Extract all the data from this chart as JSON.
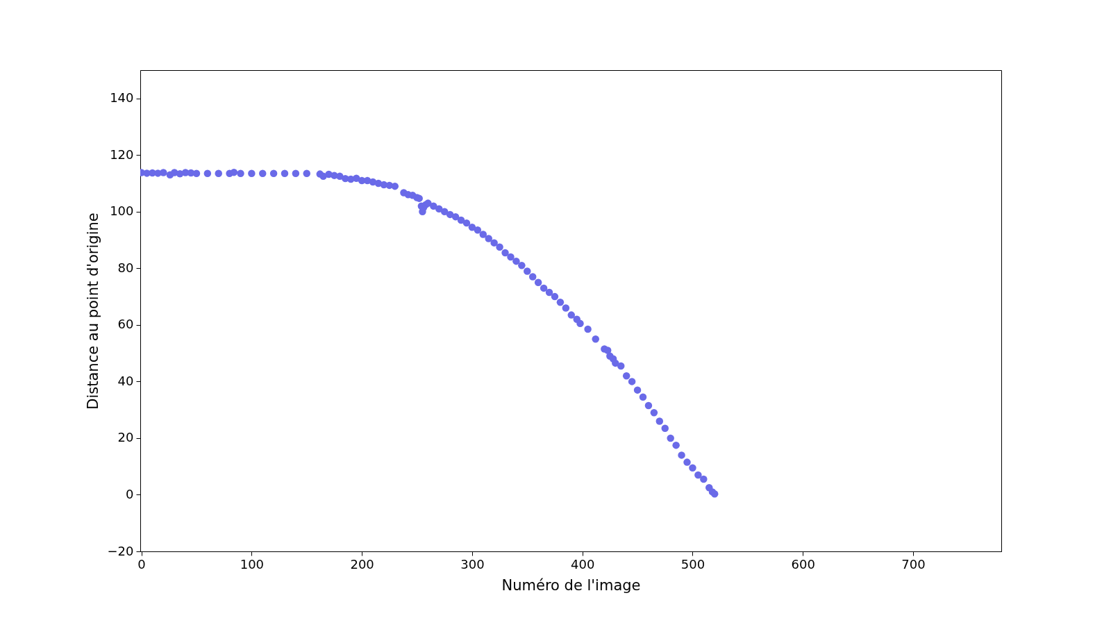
{
  "chart_data": {
    "type": "scatter",
    "xlabel": "Numéro de l'image",
    "ylabel": "Distance au point d'origine",
    "xlim": [
      -1,
      780
    ],
    "ylim": [
      -20,
      150
    ],
    "xticks": [
      0,
      100,
      200,
      300,
      400,
      500,
      600,
      700
    ],
    "yticks": [
      -20,
      0,
      20,
      40,
      60,
      80,
      100,
      120,
      140
    ],
    "grid": false,
    "marker": "circle",
    "series": [
      {
        "color": "#6a6ae8",
        "x": [
          0,
          5,
          10,
          15,
          20,
          26,
          30,
          35,
          40,
          45,
          50,
          60,
          70,
          80,
          84,
          90,
          100,
          110,
          120,
          130,
          140,
          150,
          162,
          165,
          170,
          175,
          180,
          185,
          190,
          195,
          200,
          205,
          210,
          215,
          220,
          225,
          230,
          238,
          242,
          246,
          250,
          252,
          254,
          255,
          256,
          258,
          260,
          265,
          270,
          275,
          280,
          285,
          290,
          295,
          300,
          305,
          310,
          315,
          320,
          325,
          330,
          335,
          340,
          345,
          350,
          355,
          360,
          365,
          370,
          375,
          380,
          385,
          390,
          395,
          398,
          405,
          412,
          420,
          423,
          425,
          428,
          430,
          435,
          440,
          445,
          450,
          455,
          460,
          465,
          470,
          475,
          480,
          485,
          490,
          495,
          500,
          505,
          510,
          515,
          518,
          520
        ],
        "values": [
          113.8,
          113.6,
          113.7,
          113.6,
          113.8,
          113,
          113.8,
          113.4,
          113.8,
          113.7,
          113.5,
          113.5,
          113.5,
          113.5,
          113.9,
          113.5,
          113.5,
          113.5,
          113.5,
          113.5,
          113.5,
          113.5,
          113.3,
          112.5,
          113.2,
          112.8,
          112.5,
          111.7,
          111.5,
          111.8,
          111,
          111,
          110.5,
          110,
          109.5,
          109.3,
          109,
          106.7,
          106,
          105.8,
          105,
          104.7,
          102,
          100,
          101.5,
          102.5,
          103,
          102,
          101,
          100,
          99,
          98.2,
          97,
          96,
          94.5,
          93.5,
          92,
          90.5,
          89,
          87.5,
          85.5,
          84,
          82.5,
          81,
          79,
          77,
          75,
          73,
          71.5,
          70,
          68,
          66,
          63.5,
          62,
          60.5,
          58.5,
          55,
          51.5,
          51,
          49,
          48,
          46.5,
          45.5,
          42,
          40,
          37,
          34.5,
          31.5,
          29,
          26,
          23.5,
          20,
          17.5,
          14,
          11.5,
          9.5,
          7,
          5.5,
          2.5,
          1,
          0.3
        ]
      }
    ]
  }
}
